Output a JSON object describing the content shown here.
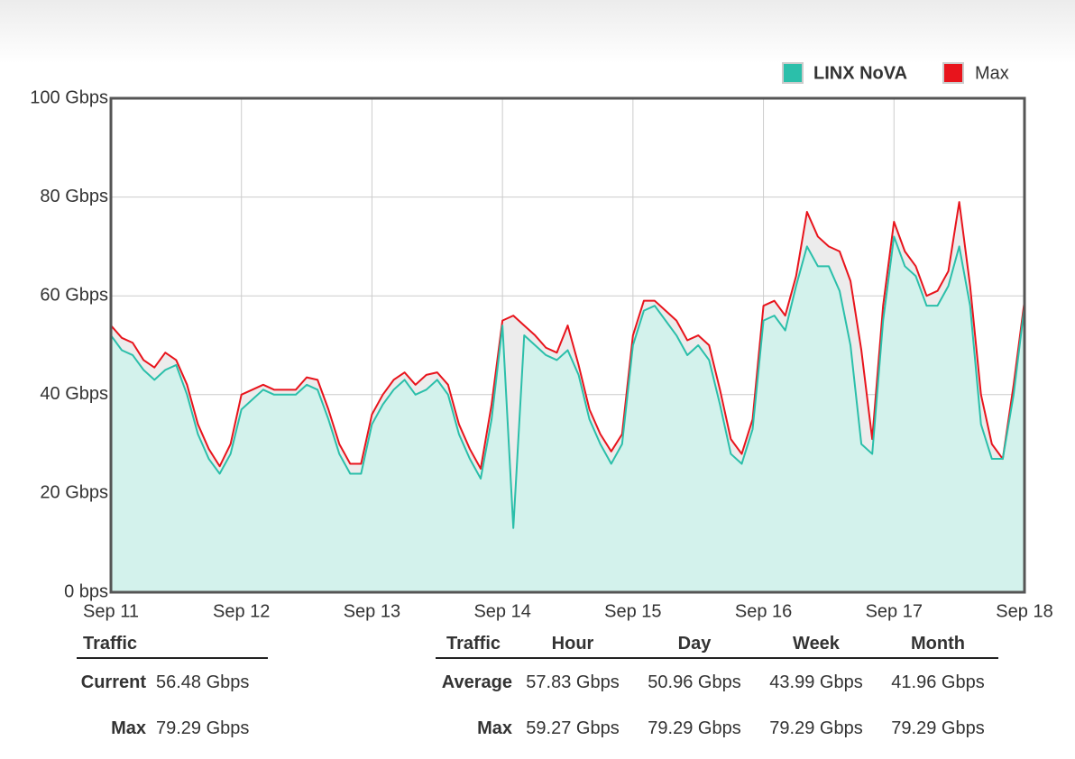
{
  "chart_data": {
    "type": "area",
    "categories": [
      "Sep 11",
      null,
      null,
      null,
      null,
      null,
      null,
      null,
      null,
      null,
      null,
      null,
      "Sep 12",
      null,
      null,
      null,
      null,
      null,
      null,
      null,
      null,
      null,
      null,
      null,
      "Sep 13",
      null,
      null,
      null,
      null,
      null,
      null,
      null,
      null,
      null,
      null,
      null,
      "Sep 14",
      null,
      null,
      null,
      null,
      null,
      null,
      null,
      null,
      null,
      null,
      null,
      "Sep 15",
      null,
      null,
      null,
      null,
      null,
      null,
      null,
      null,
      null,
      null,
      null,
      "Sep 16",
      null,
      null,
      null,
      null,
      null,
      null,
      null,
      null,
      null,
      null,
      null,
      "Sep 17",
      null,
      null,
      null,
      null,
      null,
      null,
      null,
      null,
      null,
      null,
      null,
      "Sep 18"
    ],
    "series": [
      {
        "name": "LINX NoVA",
        "color": "#2bbfaa",
        "values": [
          52,
          49,
          48,
          45,
          43,
          45,
          46,
          40,
          32,
          27,
          24,
          28,
          37,
          39,
          41,
          40,
          40,
          40,
          42,
          41,
          35,
          28,
          24,
          24,
          34,
          38,
          41,
          43,
          40,
          41,
          43,
          40,
          32,
          27,
          23,
          35,
          54,
          13,
          52,
          50,
          48,
          47,
          49,
          44,
          35,
          30,
          26,
          30,
          50,
          57,
          58,
          55,
          52,
          48,
          50,
          47,
          38,
          28,
          26,
          33,
          55,
          56,
          53,
          62,
          70,
          66,
          66,
          61,
          50,
          30,
          28,
          55,
          72,
          66,
          64,
          58,
          58,
          62,
          70,
          58,
          34,
          27,
          27,
          40,
          58
        ]
      },
      {
        "name": "Max",
        "color": "#e8141c",
        "values": [
          54,
          51.5,
          50.5,
          47,
          45.5,
          48.5,
          47,
          42,
          34,
          29,
          25.5,
          30,
          40,
          41,
          42,
          41,
          41,
          41,
          43.5,
          43,
          37,
          30,
          26,
          26,
          36,
          40,
          43,
          44.5,
          42,
          44,
          44.5,
          42,
          34,
          29,
          25,
          38,
          55,
          56,
          54,
          52,
          49.5,
          48.5,
          54,
          46,
          37,
          32,
          28.5,
          32,
          52,
          59,
          59,
          57,
          55,
          51,
          52,
          50,
          41,
          31,
          28,
          35,
          58,
          59,
          56,
          64,
          77,
          72,
          70,
          69,
          63,
          49,
          31,
          58,
          75,
          69,
          66,
          60,
          61,
          65,
          79,
          62,
          40,
          30,
          27,
          42,
          59
        ]
      }
    ],
    "ylim": [
      0,
      100
    ],
    "yticks": [
      {
        "value": 0,
        "label": "0 bps"
      },
      {
        "value": 20,
        "label": "20 Gbps"
      },
      {
        "value": 40,
        "label": "40 Gbps"
      },
      {
        "value": 60,
        "label": "60 Gbps"
      },
      {
        "value": 80,
        "label": "80 Gbps"
      },
      {
        "value": 100,
        "label": "100 Gbps"
      }
    ],
    "grid": true,
    "legend": "top-right"
  },
  "summary": {
    "header": [
      "Traffic"
    ],
    "rows": [
      [
        "Current",
        "56.48 Gbps"
      ],
      [
        "Max",
        "79.29 Gbps"
      ]
    ]
  },
  "periods": {
    "header": [
      "Traffic",
      "Hour",
      "Day",
      "Week",
      "Month"
    ],
    "rows": [
      [
        "Average",
        "57.83 Gbps",
        "50.96 Gbps",
        "43.99 Gbps",
        "41.96 Gbps"
      ],
      [
        "Max",
        "59.27 Gbps",
        "79.29 Gbps",
        "79.29 Gbps",
        "79.29 Gbps"
      ]
    ]
  }
}
